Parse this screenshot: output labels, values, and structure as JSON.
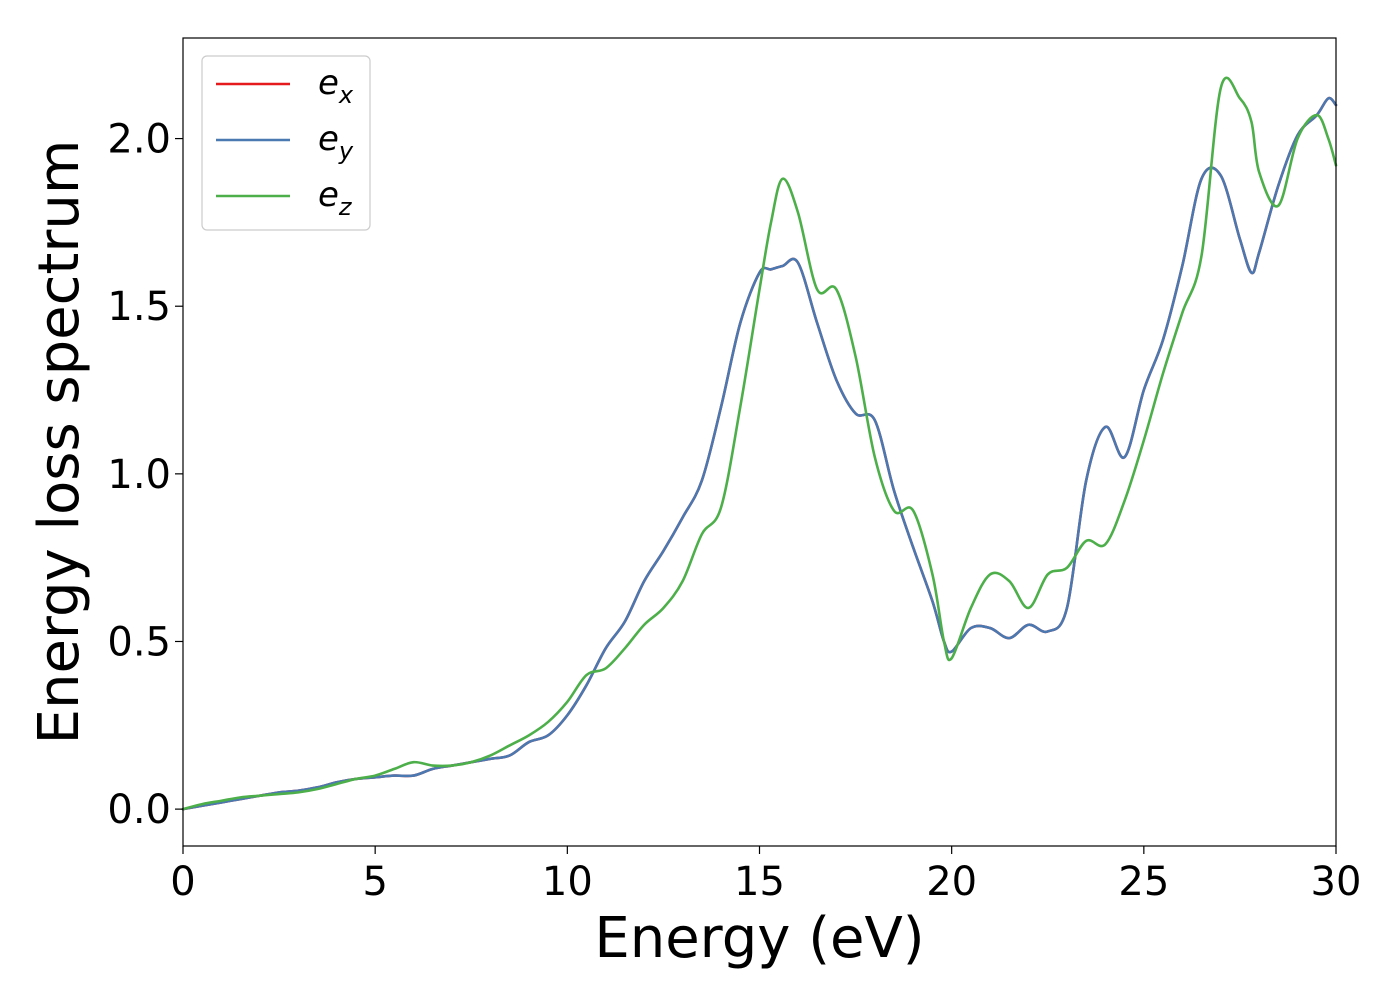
{
  "chart_data": {
    "type": "line",
    "title": "",
    "xlabel": "Energy (eV)",
    "ylabel": "Energy loss spectrum",
    "xlim": [
      0,
      30
    ],
    "ylim": [
      -0.11,
      2.3
    ],
    "xticks": [
      0,
      5,
      10,
      15,
      20,
      25,
      30
    ],
    "xtick_labels": [
      "0",
      "5",
      "10",
      "15",
      "20",
      "25",
      "30"
    ],
    "yticks": [
      0.0,
      0.5,
      1.0,
      1.5,
      2.0
    ],
    "ytick_labels": [
      "0.0",
      "0.5",
      "1.0",
      "1.5",
      "2.0"
    ],
    "grid": false,
    "legend_position": "top-left",
    "series": [
      {
        "name": "e",
        "subscript": "x",
        "color": "#e41a1c",
        "x": [
          0,
          0.5,
          1,
          1.5,
          2,
          2.5,
          3,
          3.5,
          4,
          4.5,
          5,
          5.5,
          6,
          6.5,
          7,
          7.5,
          8,
          8.5,
          9,
          9.5,
          10,
          10.5,
          11,
          11.5,
          12,
          12.5,
          13,
          13.5,
          14,
          14.5,
          15,
          15.3,
          15.6,
          16,
          16.5,
          17,
          17.5,
          18,
          18.5,
          19,
          19.5,
          19.8,
          20,
          20.5,
          21,
          21.5,
          22,
          22.5,
          23,
          23.5,
          24,
          24.5,
          25,
          25.5,
          26,
          26.5,
          27,
          27.5,
          27.8,
          28,
          28.5,
          29,
          29.5,
          29.8,
          30
        ],
        "y": [
          0.0,
          0.01,
          0.02,
          0.03,
          0.04,
          0.05,
          0.055,
          0.065,
          0.08,
          0.09,
          0.095,
          0.1,
          0.1,
          0.12,
          0.13,
          0.14,
          0.15,
          0.16,
          0.2,
          0.22,
          0.28,
          0.37,
          0.48,
          0.56,
          0.68,
          0.77,
          0.87,
          0.98,
          1.2,
          1.45,
          1.6,
          1.61,
          1.62,
          1.63,
          1.45,
          1.28,
          1.18,
          1.16,
          0.95,
          0.78,
          0.62,
          0.5,
          0.47,
          0.54,
          0.54,
          0.51,
          0.55,
          0.53,
          0.6,
          0.98,
          1.14,
          1.05,
          1.25,
          1.4,
          1.62,
          1.88,
          1.89,
          1.7,
          1.6,
          1.66,
          1.86,
          2.01,
          2.07,
          2.12,
          2.1
        ]
      },
      {
        "name": "e",
        "subscript": "y",
        "color": "#4a78b0",
        "x": [
          0,
          0.5,
          1,
          1.5,
          2,
          2.5,
          3,
          3.5,
          4,
          4.5,
          5,
          5.5,
          6,
          6.5,
          7,
          7.5,
          8,
          8.5,
          9,
          9.5,
          10,
          10.5,
          11,
          11.5,
          12,
          12.5,
          13,
          13.5,
          14,
          14.5,
          15,
          15.3,
          15.6,
          16,
          16.5,
          17,
          17.5,
          18,
          18.5,
          19,
          19.5,
          19.8,
          20,
          20.5,
          21,
          21.5,
          22,
          22.5,
          23,
          23.5,
          24,
          24.5,
          25,
          25.5,
          26,
          26.5,
          27,
          27.5,
          27.8,
          28,
          28.5,
          29,
          29.5,
          29.8,
          30
        ],
        "y": [
          0.0,
          0.01,
          0.02,
          0.03,
          0.04,
          0.05,
          0.055,
          0.065,
          0.08,
          0.09,
          0.095,
          0.1,
          0.1,
          0.12,
          0.13,
          0.14,
          0.15,
          0.16,
          0.2,
          0.22,
          0.28,
          0.37,
          0.48,
          0.56,
          0.68,
          0.77,
          0.87,
          0.98,
          1.2,
          1.45,
          1.6,
          1.61,
          1.62,
          1.63,
          1.45,
          1.28,
          1.18,
          1.16,
          0.95,
          0.78,
          0.62,
          0.5,
          0.47,
          0.54,
          0.54,
          0.51,
          0.55,
          0.53,
          0.6,
          0.98,
          1.14,
          1.05,
          1.25,
          1.4,
          1.62,
          1.88,
          1.89,
          1.7,
          1.6,
          1.66,
          1.86,
          2.01,
          2.07,
          2.12,
          2.1
        ]
      },
      {
        "name": "e",
        "subscript": "z",
        "color": "#4daf4a",
        "x": [
          0,
          0.5,
          1,
          1.5,
          2,
          2.5,
          3,
          3.5,
          4,
          4.5,
          5,
          5.5,
          6,
          6.5,
          7,
          7.5,
          8,
          8.5,
          9,
          9.5,
          10,
          10.5,
          11,
          11.5,
          12,
          12.5,
          13,
          13.5,
          14,
          14.5,
          15,
          15.3,
          15.6,
          16,
          16.5,
          17,
          17.5,
          18,
          18.5,
          19,
          19.5,
          19.8,
          20,
          20.5,
          21,
          21.5,
          22,
          22.5,
          23,
          23.5,
          24,
          24.5,
          25,
          25.5,
          26,
          26.5,
          27,
          27.5,
          27.8,
          28,
          28.5,
          29,
          29.5,
          29.8,
          30
        ],
        "y": [
          0.0,
          0.015,
          0.025,
          0.035,
          0.04,
          0.045,
          0.05,
          0.06,
          0.075,
          0.09,
          0.1,
          0.12,
          0.14,
          0.13,
          0.13,
          0.14,
          0.16,
          0.19,
          0.22,
          0.26,
          0.32,
          0.4,
          0.42,
          0.48,
          0.55,
          0.6,
          0.68,
          0.82,
          0.9,
          1.2,
          1.55,
          1.75,
          1.88,
          1.78,
          1.55,
          1.55,
          1.35,
          1.05,
          0.89,
          0.89,
          0.7,
          0.5,
          0.45,
          0.6,
          0.7,
          0.68,
          0.6,
          0.7,
          0.72,
          0.8,
          0.79,
          0.92,
          1.1,
          1.3,
          1.48,
          1.65,
          2.15,
          2.12,
          2.05,
          1.9,
          1.8,
          2.0,
          2.07,
          2.0,
          1.92
        ]
      }
    ]
  }
}
